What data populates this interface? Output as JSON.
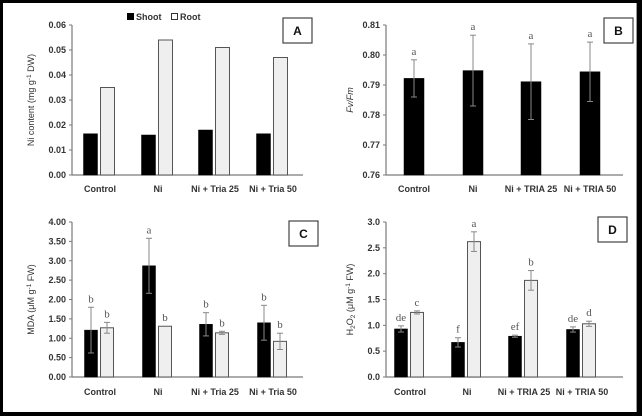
{
  "colors": {
    "shoot": "#000000",
    "root": "#efefef",
    "axis": "#7a7a7a",
    "error": "#888888"
  },
  "legend": {
    "shoot": "Shoot",
    "root": "Root"
  },
  "chart_data": [
    {
      "panel": "A",
      "type": "bar",
      "ylabel_main": "Ni content (mg g",
      "ylabel_sup": "-1",
      "ylabel_tail": " DW)",
      "ylim": [
        0,
        0.06
      ],
      "yticks": [
        "0.00",
        "0.01",
        "0.02",
        "0.03",
        "0.04",
        "0.05",
        "0.06"
      ],
      "categories": [
        "Control",
        "Ni",
        "Ni + Tria 25",
        "Ni + Tria 50"
      ],
      "series": [
        {
          "name": "Shoot",
          "values": [
            0.0165,
            0.016,
            0.018,
            0.0165
          ]
        },
        {
          "name": "Root",
          "values": [
            0.035,
            0.054,
            0.051,
            0.047
          ]
        }
      ]
    },
    {
      "panel": "B",
      "type": "bar",
      "ylabel_main": "Fv/Fm",
      "ylim": [
        0.76,
        0.81
      ],
      "yticks": [
        "0.76",
        "0.77",
        "0.78",
        "0.79",
        "0.80",
        "0.81"
      ],
      "categories": [
        "Control",
        "Ni",
        "Ni + TRIA 25",
        "Ni + TRIA 50"
      ],
      "series": [
        {
          "name": "Fv/Fm",
          "values": [
            0.7922,
            0.7948,
            0.7911,
            0.7944
          ],
          "error": [
            0.0062,
            0.0118,
            0.0126,
            0.0099
          ],
          "letters": [
            "a",
            "a",
            "a",
            "a"
          ]
        }
      ]
    },
    {
      "panel": "C",
      "type": "bar",
      "ylabel_main": "MDA (μM g",
      "ylabel_sup": "-1",
      "ylabel_tail": " FW)",
      "ylim": [
        0,
        4
      ],
      "yticks": [
        "0.00",
        "0.50",
        "1.00",
        "1.50",
        "2.00",
        "2.50",
        "3.00",
        "3.50",
        "4.00"
      ],
      "categories": [
        "Control",
        "Ni",
        "Ni + Tria 25",
        "Ni + Tria 50"
      ],
      "series": [
        {
          "name": "Shoot",
          "values": [
            1.21,
            2.87,
            1.36,
            1.4
          ],
          "error": [
            0.59,
            0.71,
            0.3,
            0.45
          ],
          "letters": [
            "b",
            "a",
            "b",
            "b"
          ]
        },
        {
          "name": "Root",
          "values": [
            1.27,
            1.31,
            1.14,
            0.92
          ],
          "error": [
            0.14,
            0.0,
            0.04,
            0.21
          ],
          "letters": [
            "b",
            "b",
            "b",
            "b"
          ]
        }
      ]
    },
    {
      "panel": "D",
      "type": "bar",
      "ylabel_main": "H",
      "ylabel_sub1": "2",
      "ylabel_mid": "O",
      "ylabel_sub2": "2",
      "ylabel_rest": " (μM g",
      "ylabel_sup": "-1",
      "ylabel_tail": " FW)",
      "ylim": [
        0,
        3
      ],
      "yticks": [
        "0.0",
        "0.5",
        "1.0",
        "1.5",
        "2.0",
        "2.5",
        "3.0"
      ],
      "categories": [
        "Control",
        "Ni",
        "Ni + TRIA 25",
        "Ni + TRIA 50"
      ],
      "series": [
        {
          "name": "Shoot",
          "values": [
            0.93,
            0.67,
            0.79,
            0.92
          ],
          "error": [
            0.06,
            0.09,
            0.02,
            0.05
          ],
          "letters": [
            "de",
            "f",
            "ef",
            "de"
          ]
        },
        {
          "name": "Root",
          "values": [
            1.25,
            2.62,
            1.87,
            1.03
          ],
          "error": [
            0.03,
            0.19,
            0.19,
            0.05
          ],
          "letters": [
            "c",
            "a",
            "b",
            "d"
          ]
        }
      ]
    }
  ]
}
